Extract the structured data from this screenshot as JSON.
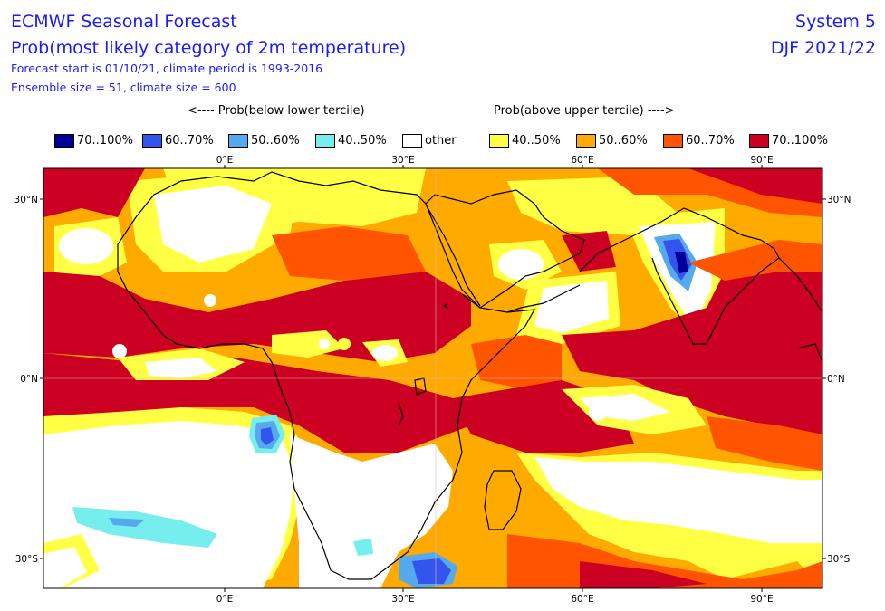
{
  "header": {
    "title": "ECMWF Seasonal Forecast",
    "subtitle": "Prob(most likely category of 2m temperature)",
    "forecast_info": "Forecast start is 01/10/21, climate period is 1993-2016",
    "ensemble_info": "Ensemble size = 51, climate size = 600",
    "system": "System 5",
    "season": "DJF 2021/22"
  },
  "legend": {
    "below_label": "<---- Prob(below lower tercile)",
    "above_label": "Prob(above upper tercile) ---->",
    "items": [
      {
        "label": "70..100%",
        "color": "#000099"
      },
      {
        "label": "60..70%",
        "color": "#3355ee"
      },
      {
        "label": "50..60%",
        "color": "#55aaee"
      },
      {
        "label": "40..50%",
        "color": "#77eeee"
      },
      {
        "label": "other",
        "color": "#ffffff"
      },
      {
        "label": "40..50%",
        "color": "#ffff44"
      },
      {
        "label": "50..60%",
        "color": "#ffaa00"
      },
      {
        "label": "60..70%",
        "color": "#ff5500"
      },
      {
        "label": "70..100%",
        "color": "#cc0022"
      }
    ]
  },
  "map": {
    "lon_ticks": [
      "0°E",
      "30°E",
      "60°E",
      "90°E"
    ],
    "lat_ticks": [
      "30°N",
      "0°N",
      "30°S"
    ]
  }
}
